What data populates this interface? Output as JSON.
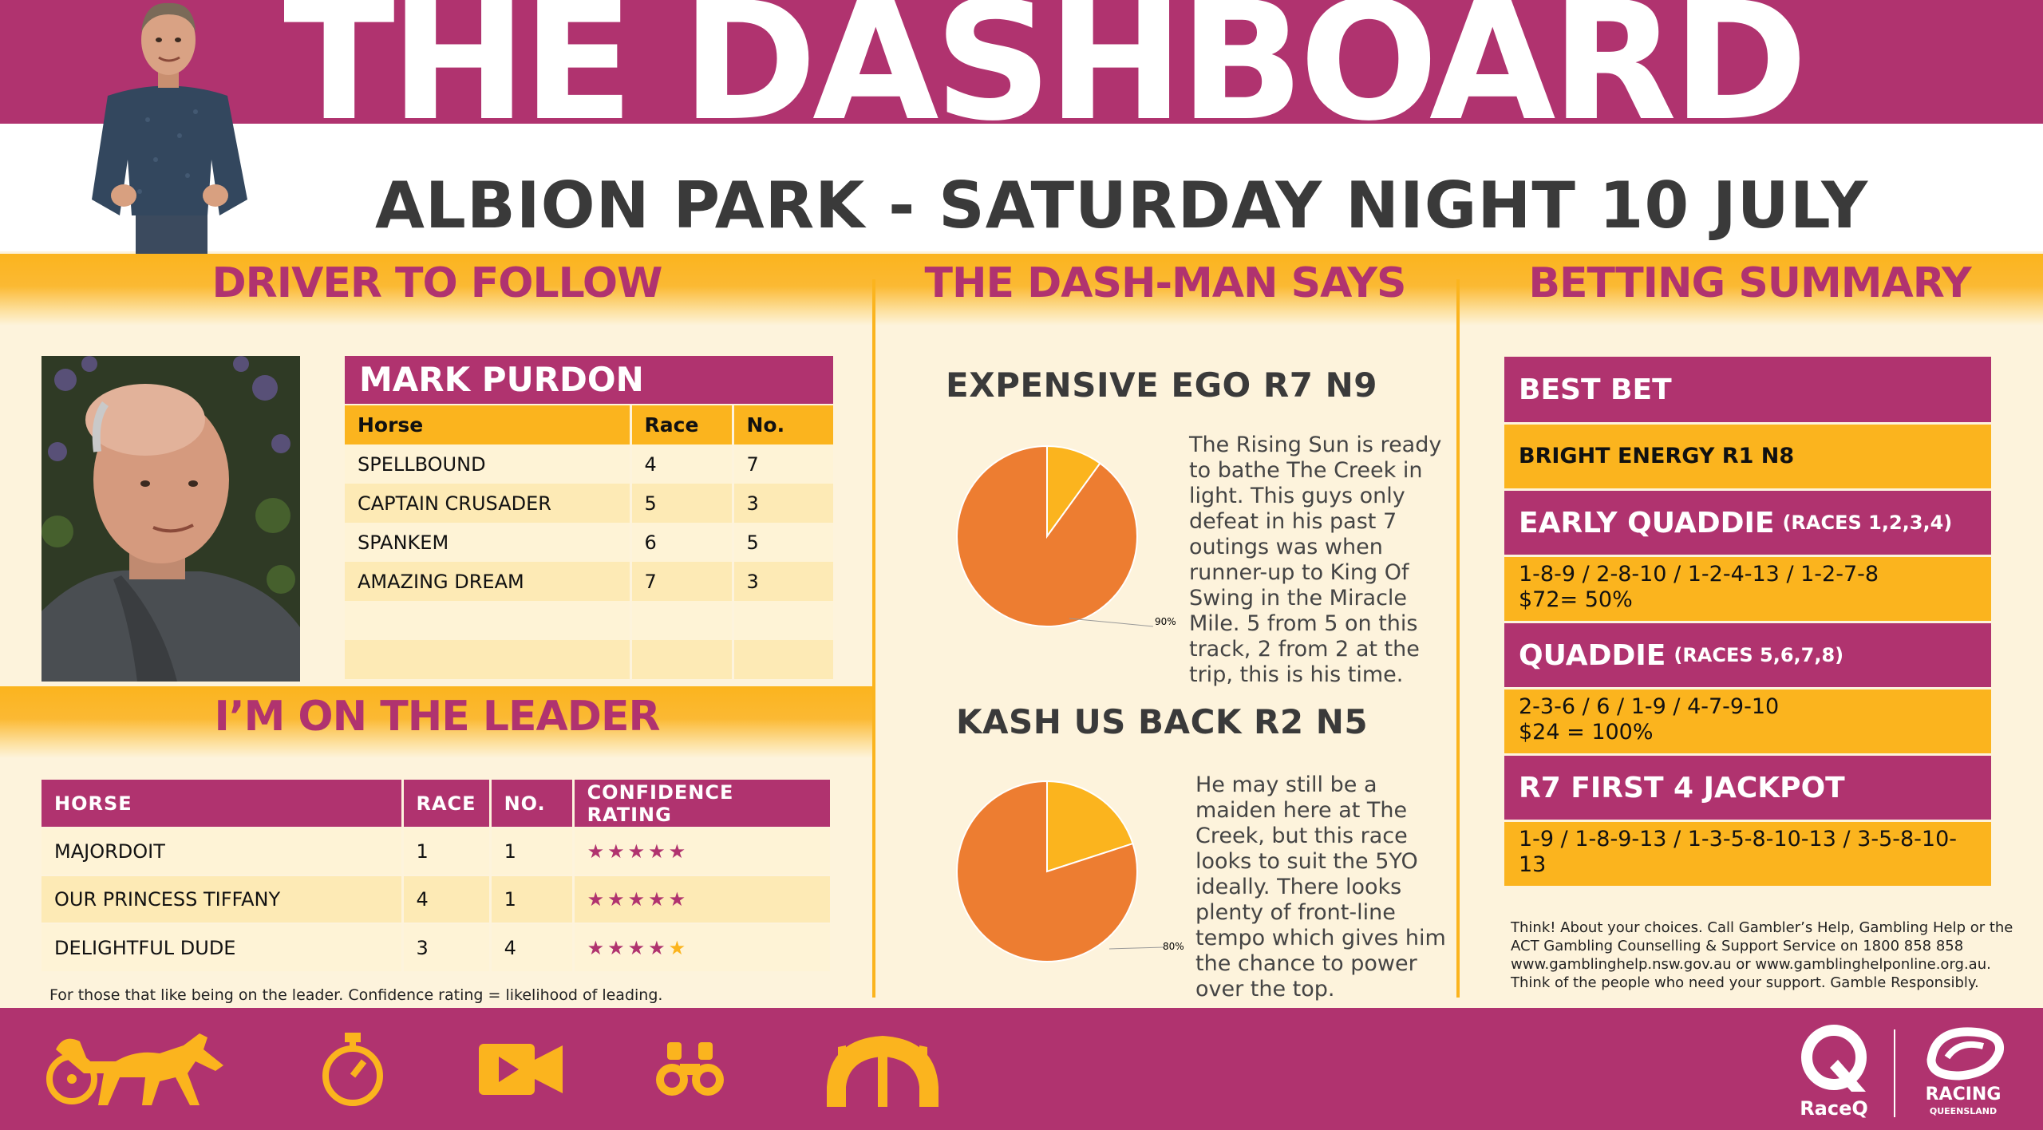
{
  "header": {
    "title": "THE DASHBOARD",
    "subtitle": "ALBION PARK - SATURDAY NIGHT 10 JULY"
  },
  "sections": {
    "driver_to_follow": "DRIVER TO FOLLOW",
    "dash_man_says": "THE DASH-MAN SAYS",
    "betting_summary": "BETTING SUMMARY",
    "on_the_leader": "I’M ON THE LEADER"
  },
  "driver": {
    "name": "MARK PURDON",
    "columns": [
      "Horse",
      "Race",
      "No."
    ],
    "rows": [
      {
        "horse": "SPELLBOUND",
        "race": "4",
        "no": "7"
      },
      {
        "horse": "CAPTAIN CRUSADER",
        "race": "5",
        "no": "3"
      },
      {
        "horse": "SPANKEM",
        "race": "6",
        "no": "5"
      },
      {
        "horse": "AMAZING DREAM",
        "race": "7",
        "no": "3"
      },
      {
        "horse": "",
        "race": "",
        "no": ""
      },
      {
        "horse": "",
        "race": "",
        "no": ""
      }
    ]
  },
  "leader": {
    "columns": [
      "HORSE",
      "RACE",
      "NO.",
      "CONFIDENCE RATING"
    ],
    "rows": [
      {
        "horse": "MAJORDOIT",
        "race": "1",
        "no": "1",
        "stars": "★★★★★",
        "rating": 5
      },
      {
        "horse": "OUR PRINCESS TIFFANY",
        "race": "4",
        "no": "1",
        "stars": "★★★★★",
        "rating": 5
      },
      {
        "horse": "DELIGHTFUL DUDE",
        "race": "3",
        "no": "4",
        "stars": "★★★★★",
        "rating": 4
      }
    ],
    "footnote": "For those that like being on the leader.  Confidence rating = likelihood of leading."
  },
  "tips": [
    {
      "title": "EXPENSIVE EGO R7 N9",
      "text": "The Rising Sun is ready to bathe The Creek in light. This guys only defeat in his past 7 outings was when runner-up to King Of Swing in the Miracle Mile. 5 from 5 on this track, 2 from 2 at the trip, this is his time.",
      "pie_value": 90,
      "pie_label": "90%"
    },
    {
      "title": "KASH US BACK R2 N5",
      "text": "He may still be a maiden here at The Creek, but this race looks to suit the 5YO ideally. There looks plenty of front-line tempo which gives him the chance to power over the top.",
      "pie_value": 80,
      "pie_label": "80%"
    }
  ],
  "betting": {
    "best_bet": {
      "title": "BEST BET",
      "body": "BRIGHT ENERGY R1 N8"
    },
    "early_quaddie": {
      "title": "EARLY QUADDIE",
      "sub": "(RACES 1,2,3,4)",
      "line1": "1-8-9 / 2-8-10 / 1-2-4-13 / 1-2-7-8",
      "line2": "$72= 50%"
    },
    "quaddie": {
      "title": "QUADDIE",
      "sub": "(RACES 5,6,7,8)",
      "line1": "2-3-6 / 6 / 1-9 / 4-7-9-10",
      "line2": "$24 = 100%"
    },
    "jackpot": {
      "title": "R7 FIRST 4 JACKPOT",
      "line1": "1-9 / 1-8-9-13 / 1-3-5-8-10-13 / 3-5-8-10-13"
    },
    "disclaimer": "Think! About your choices. Call Gambler’s Help, Gambling Help or the ACT Gambling Counselling & Support Service on 1800 858 858 www.gamblinghelp.nsw.gov.au or www.gamblinghelponline.org.au. Think of the people who need your support. Gamble Responsibly."
  },
  "footer": {
    "icons": [
      "harness-racing-icon",
      "stopwatch-icon",
      "video-camera-icon",
      "binoculars-icon",
      "racetrack-gate-icon"
    ],
    "raceq": "RaceQ",
    "racing_qld_1": "RACING",
    "racing_qld_2": "QUEENSLAND"
  },
  "colors": {
    "magenta": "#b0336f",
    "gold": "#fbb41e",
    "cream": "#fdf3dc",
    "pie_orange": "#ed7d31",
    "pie_gold": "#fbb41e"
  }
}
